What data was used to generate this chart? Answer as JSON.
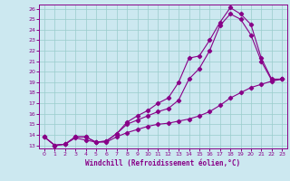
{
  "xlabel": "Windchill (Refroidissement éolien,°C)",
  "bg_color": "#cce8f0",
  "line_color": "#880088",
  "grid_color": "#99cccc",
  "xlim": [
    -0.5,
    23.5
  ],
  "ylim": [
    12.7,
    26.4
  ],
  "xticks": [
    0,
    1,
    2,
    3,
    4,
    5,
    6,
    7,
    8,
    9,
    10,
    11,
    12,
    13,
    14,
    15,
    16,
    17,
    18,
    19,
    20,
    21,
    22,
    23
  ],
  "yticks": [
    13,
    14,
    15,
    16,
    17,
    18,
    19,
    20,
    21,
    22,
    23,
    24,
    25,
    26
  ],
  "line1_x": [
    0,
    1,
    2,
    3,
    4,
    5,
    6,
    7,
    8,
    9,
    10,
    11,
    12,
    13,
    14,
    15,
    16,
    17,
    18,
    19,
    20,
    21,
    22,
    23
  ],
  "line1_y": [
    13.8,
    13.0,
    13.1,
    13.8,
    13.8,
    13.3,
    13.4,
    14.1,
    15.2,
    15.8,
    16.3,
    17.0,
    17.5,
    19.0,
    21.3,
    21.5,
    23.0,
    24.7,
    26.1,
    25.5,
    24.5,
    21.3,
    19.3,
    19.3
  ],
  "line2_x": [
    0,
    1,
    2,
    3,
    4,
    5,
    6,
    7,
    8,
    9,
    10,
    11,
    12,
    13,
    14,
    15,
    16,
    17,
    18,
    19,
    20,
    21,
    22,
    23
  ],
  "line2_y": [
    13.8,
    13.0,
    13.1,
    13.8,
    13.8,
    13.3,
    13.4,
    14.1,
    15.0,
    15.4,
    15.8,
    16.2,
    16.5,
    17.3,
    19.3,
    20.3,
    22.0,
    24.4,
    25.5,
    25.0,
    23.5,
    21.0,
    19.2,
    19.3
  ],
  "line3_x": [
    0,
    1,
    2,
    3,
    4,
    5,
    6,
    7,
    8,
    9,
    10,
    11,
    12,
    13,
    14,
    15,
    16,
    17,
    18,
    19,
    20,
    21,
    22,
    23
  ],
  "line3_y": [
    13.8,
    13.0,
    13.1,
    13.7,
    13.5,
    13.3,
    13.3,
    13.8,
    14.2,
    14.5,
    14.8,
    15.0,
    15.1,
    15.3,
    15.5,
    15.8,
    16.2,
    16.8,
    17.5,
    18.0,
    18.5,
    18.8,
    19.1,
    19.3
  ]
}
